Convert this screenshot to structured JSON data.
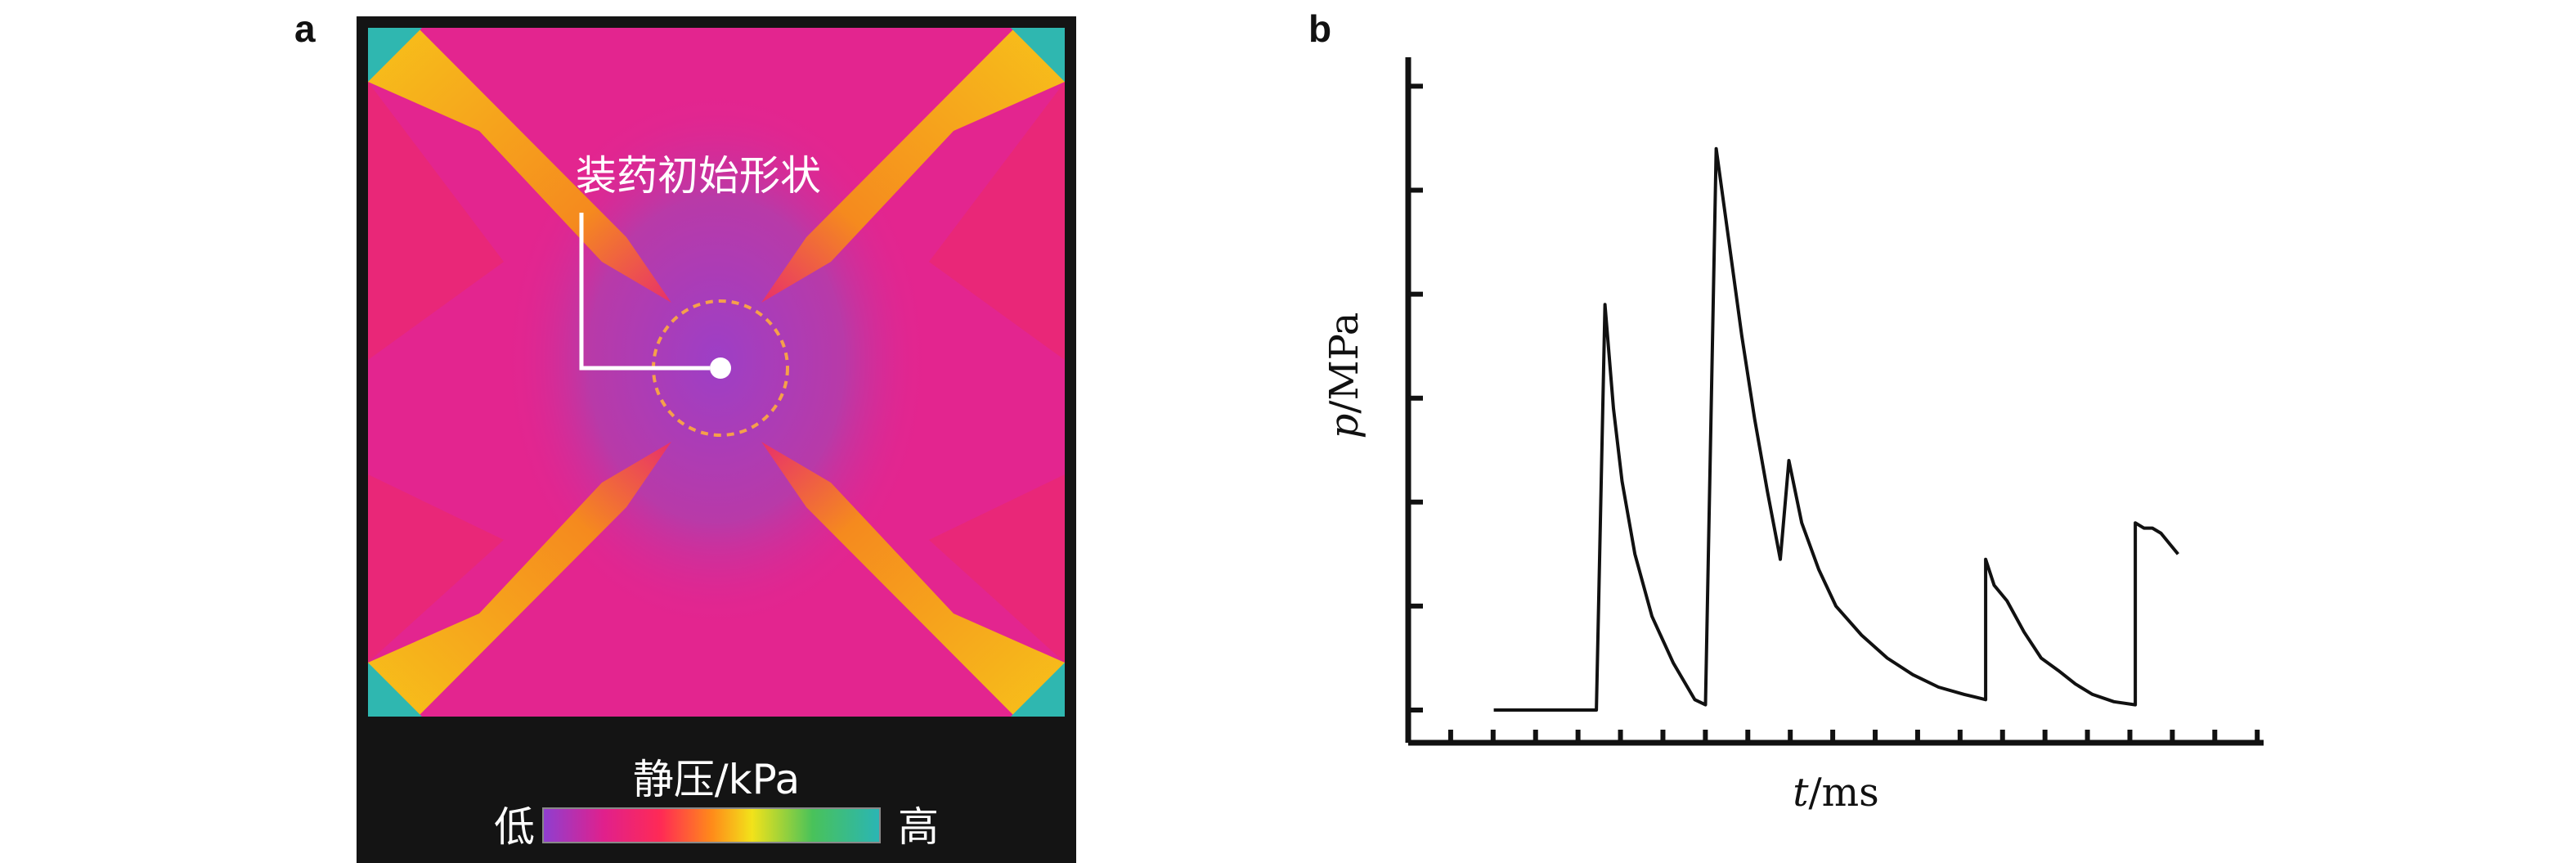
{
  "panels": {
    "a": {
      "letter": "a",
      "annotation": "装药初始形状",
      "colorbar": {
        "title": "静压/kPa",
        "low_label": "低",
        "high_label": "高",
        "colors": [
          "#8e3fd1",
          "#e0208c",
          "#ff2a55",
          "#ff8a1a",
          "#f2e21a",
          "#49c25a",
          "#2ab5b5"
        ]
      },
      "colors": {
        "background_field": "#e3258f",
        "center_region": "#a440bd",
        "jet_yellow": "#f7b21c",
        "jet_orange": "#f06a2a",
        "corner_teal": "#2fb7b0",
        "frame": "#141414"
      }
    },
    "b": {
      "letter": "b"
    }
  },
  "chart_data": {
    "type": "line",
    "title": "",
    "xlabel_italic": "t",
    "xlabel_unit": "/ms",
    "ylabel_italic": "p",
    "ylabel_unit": "/MPa",
    "x_ticks_count": 20,
    "y_ticks_count": 6,
    "xlim": [
      0,
      20
    ],
    "ylim": [
      0,
      6.2
    ],
    "grid": false,
    "legend": "none",
    "series": [
      {
        "color": "#111111",
        "x": [
          2,
          4.4,
          4.6,
          4.8,
          5.0,
          5.3,
          5.7,
          6.2,
          6.7,
          6.95,
          7.2,
          7.5,
          7.8,
          8.1,
          8.4,
          8.7,
          8.9,
          9.2,
          9.6,
          10.0,
          10.6,
          11.2,
          11.8,
          12.4,
          13.0,
          13.5,
          13.5,
          13.7,
          14.0,
          14.4,
          14.8,
          15.2,
          15.6,
          16.0,
          16.5,
          17.0,
          17.0,
          17.2,
          17.4,
          17.6,
          17.8,
          18.0
        ],
        "y": [
          0,
          0,
          3.9,
          2.9,
          2.2,
          1.5,
          0.9,
          0.45,
          0.1,
          0.05,
          5.4,
          4.5,
          3.6,
          2.8,
          2.1,
          1.45,
          2.4,
          1.8,
          1.35,
          1.0,
          0.72,
          0.5,
          0.34,
          0.22,
          0.15,
          0.1,
          1.45,
          1.2,
          1.05,
          0.75,
          0.5,
          0.38,
          0.25,
          0.15,
          0.08,
          0.05,
          1.8,
          1.75,
          1.75,
          1.7,
          1.6,
          1.5
        ]
      }
    ]
  }
}
